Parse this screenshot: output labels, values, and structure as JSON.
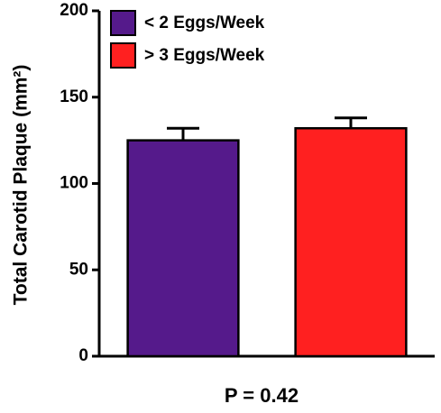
{
  "chart_data": {
    "type": "bar",
    "y_label": "Total Carotid Plaque (mm²)",
    "annotation": "P = 0.42",
    "categories": [
      null
    ],
    "series": [
      {
        "name": "< 2 Eggs/Week",
        "color": "#551a8b",
        "values": [
          125
        ],
        "errors": [
          7
        ]
      },
      {
        "name": "> 3 Eggs/Week",
        "color": "#ff2020",
        "values": [
          132
        ],
        "errors": [
          6
        ]
      }
    ],
    "ylim": [
      0,
      200
    ],
    "yticks": [
      0,
      50,
      100,
      150,
      200
    ],
    "grid": false,
    "legend": "top-left"
  }
}
